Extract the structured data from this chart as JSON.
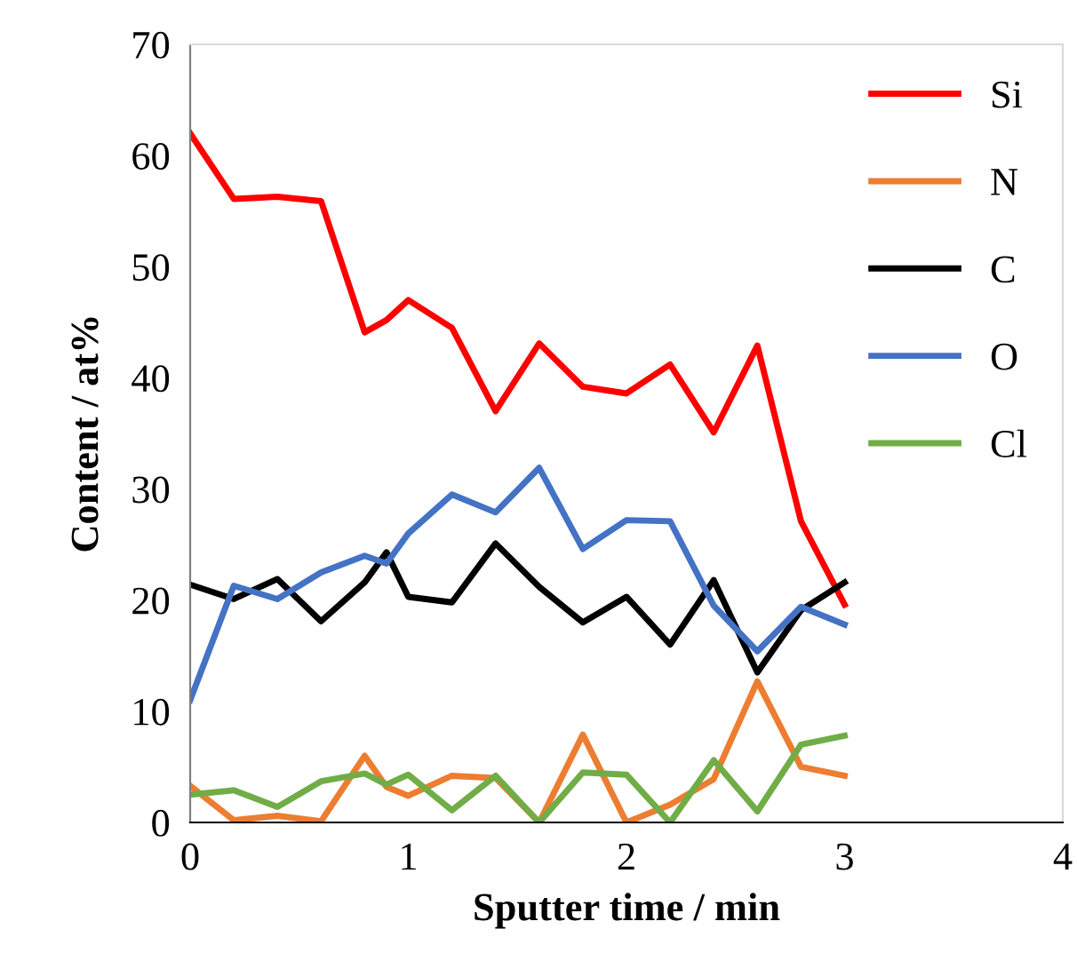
{
  "chart_data": {
    "type": "line",
    "xlabel": "Sputter time / min",
    "ylabel": "Content / at%",
    "x": [
      0,
      0.2,
      0.4,
      0.6,
      0.8,
      0.9,
      1.0,
      1.2,
      1.4,
      1.6,
      1.8,
      2.0,
      2.2,
      2.4,
      2.6,
      2.8,
      3.0
    ],
    "series": [
      {
        "name": "Si",
        "color": "#ff0000",
        "values": [
          62,
          56.1,
          56.3,
          55.9,
          44.1,
          45.2,
          47,
          44.5,
          37,
          43.1,
          39.2,
          38.6,
          41.2,
          35.1,
          42.9,
          27.1,
          19.6
        ]
      },
      {
        "name": "N",
        "color": "#ed7d31",
        "values": [
          3.3,
          0.2,
          0.6,
          0.1,
          6,
          3.2,
          2.4,
          4.2,
          4,
          0,
          7.9,
          0,
          1.6,
          3.9,
          12.7,
          5,
          4.2
        ]
      },
      {
        "name": "C",
        "color": "#000000",
        "values": [
          21.4,
          20.1,
          21.9,
          18.1,
          21.6,
          24.3,
          20.3,
          19.8,
          25.1,
          21.2,
          18,
          20.3,
          16,
          21.8,
          13.5,
          19.1,
          21.6
        ]
      },
      {
        "name": "O",
        "color": "#4472c4",
        "values": [
          11,
          21.3,
          20.1,
          22.5,
          24,
          23.3,
          26,
          29.5,
          27.9,
          31.9,
          24.6,
          27.2,
          27.1,
          19.5,
          15.4,
          19.4,
          17.8
        ]
      },
      {
        "name": "Cl",
        "color": "#70ad47",
        "values": [
          2.5,
          2.9,
          1.4,
          3.7,
          4.4,
          3.4,
          4.3,
          1.1,
          4.2,
          0,
          4.5,
          4.3,
          0,
          5.6,
          1,
          7,
          7.8
        ]
      }
    ],
    "xlim": [
      0,
      4
    ],
    "xticks": [
      0,
      1,
      2,
      3,
      4
    ],
    "ylim": [
      0,
      70
    ],
    "yticks": [
      0,
      10,
      20,
      30,
      40,
      50,
      60,
      70
    ],
    "grid": false,
    "legend": "top right",
    "marker": "none",
    "line_style": "solid"
  }
}
